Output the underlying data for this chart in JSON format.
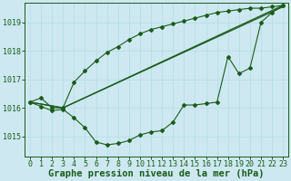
{
  "background_color": "#cde8f0",
  "line_color": "#1a5c1a",
  "grid_color": "#b8dde8",
  "title": "Graphe pression niveau de la mer (hPa)",
  "ylim": [
    1014.3,
    1019.7
  ],
  "yticks": [
    1015,
    1016,
    1017,
    1018,
    1019
  ],
  "xlim": [
    -0.5,
    23.5
  ],
  "series1_x": [
    0,
    1,
    2,
    3,
    4,
    5,
    6,
    7,
    8,
    9,
    10,
    11,
    12,
    13,
    14,
    15,
    16,
    17,
    18,
    19,
    20,
    21,
    22,
    23
  ],
  "series1_y": [
    1016.2,
    1016.35,
    1016.0,
    1016.0,
    1016.9,
    1017.3,
    1017.65,
    1017.95,
    1018.15,
    1018.4,
    1018.6,
    1018.75,
    1018.85,
    1018.95,
    1019.05,
    1019.15,
    1019.25,
    1019.35,
    1019.4,
    1019.45,
    1019.5,
    1019.5,
    1019.55,
    1019.6
  ],
  "series2_x": [
    0,
    3,
    23
  ],
  "series2_y": [
    1016.2,
    1016.0,
    1019.6
  ],
  "series3_x": [
    0,
    3,
    23
  ],
  "series3_y": [
    1016.2,
    1016.0,
    1019.6
  ],
  "series4_x": [
    0,
    1,
    2,
    3,
    4,
    5,
    6,
    7,
    8,
    9,
    10,
    11,
    12,
    13,
    14,
    15,
    16,
    17,
    18,
    19,
    20,
    21,
    22,
    23
  ],
  "series4_y": [
    1016.2,
    1016.05,
    1015.9,
    1015.95,
    1015.65,
    1015.3,
    1014.8,
    1014.7,
    1014.75,
    1014.85,
    1015.05,
    1015.15,
    1015.2,
    1015.5,
    1016.1,
    1016.1,
    1016.15,
    1016.2,
    1017.8,
    1017.2,
    1017.4,
    1019.0,
    1019.35,
    1019.6
  ],
  "title_fontsize": 7.5,
  "tick_fontsize": 6
}
